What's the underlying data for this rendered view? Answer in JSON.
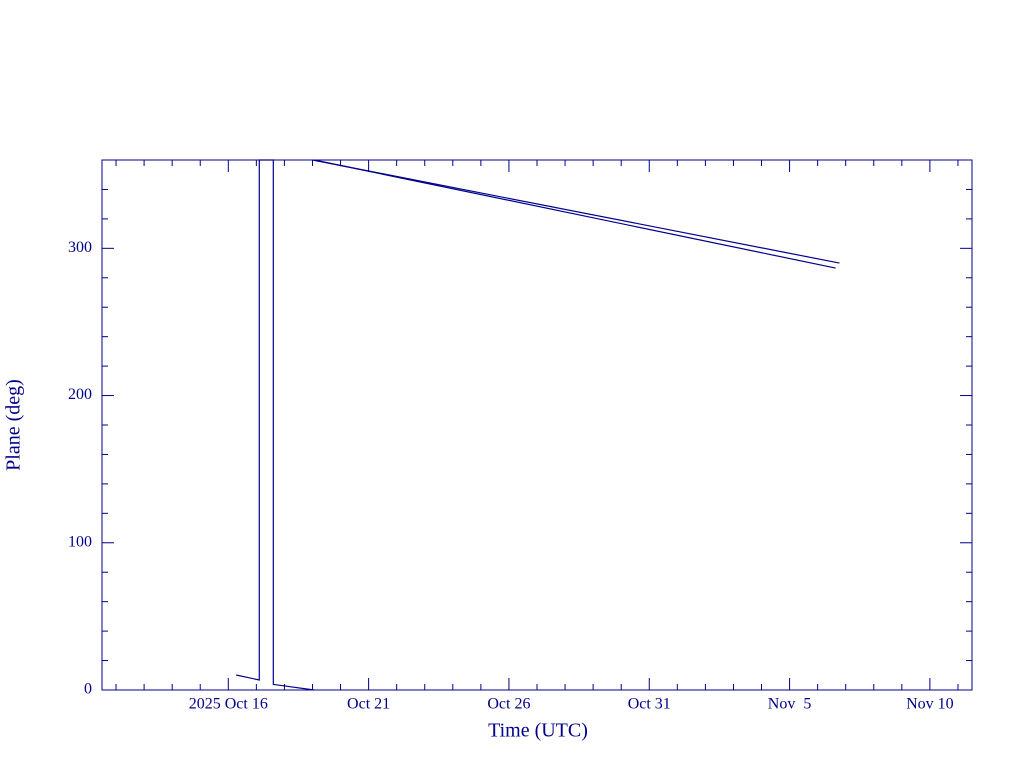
{
  "chart_data": {
    "type": "line",
    "x_label": "Time (UTC)",
    "y_label": "Plane (deg)",
    "xlim": [
      "2025-10-11T12:00Z",
      "2025-11-11T12:00Z"
    ],
    "xticks": [
      {
        "value": "2025-10-16T00:00Z",
        "label": "2025 Oct 16"
      },
      {
        "value": "2025-10-21T00:00Z",
        "label": "Oct 21"
      },
      {
        "value": "2025-10-26T00:00Z",
        "label": "Oct 26"
      },
      {
        "value": "2025-10-31T00:00Z",
        "label": "Oct 31"
      },
      {
        "value": "2025-11-05T00:00Z",
        "label": "Nov  5"
      },
      {
        "value": "2025-11-10T00:00Z",
        "label": "Nov 10"
      }
    ],
    "ylim": [
      0,
      360
    ],
    "yticks": [
      0,
      100,
      200,
      300
    ],
    "minor_ticks": true,
    "color": "#00008b",
    "series": [
      {
        "color": "#00008b",
        "x": [
          "2025-10-16T06:45Z",
          "2025-10-17T02:30Z",
          "2025-10-17T02:30Z",
          "2025-10-17T14:30Z",
          "2025-10-17T14:30Z",
          "2025-10-19T01:30Z"
        ],
        "values": [
          10.2,
          6.8,
          360,
          360,
          3.8,
          0
        ]
      },
      {
        "color": "#00008b",
        "x": [
          "2025-10-19T00:00Z",
          "2025-11-06T18:40Z"
        ],
        "values": [
          360,
          290
        ]
      },
      {
        "color": "#00008b",
        "x": [
          "2025-10-19T01:30Z",
          "2025-11-06T15:20Z"
        ],
        "values": [
          360,
          286.6
        ]
      }
    ]
  }
}
